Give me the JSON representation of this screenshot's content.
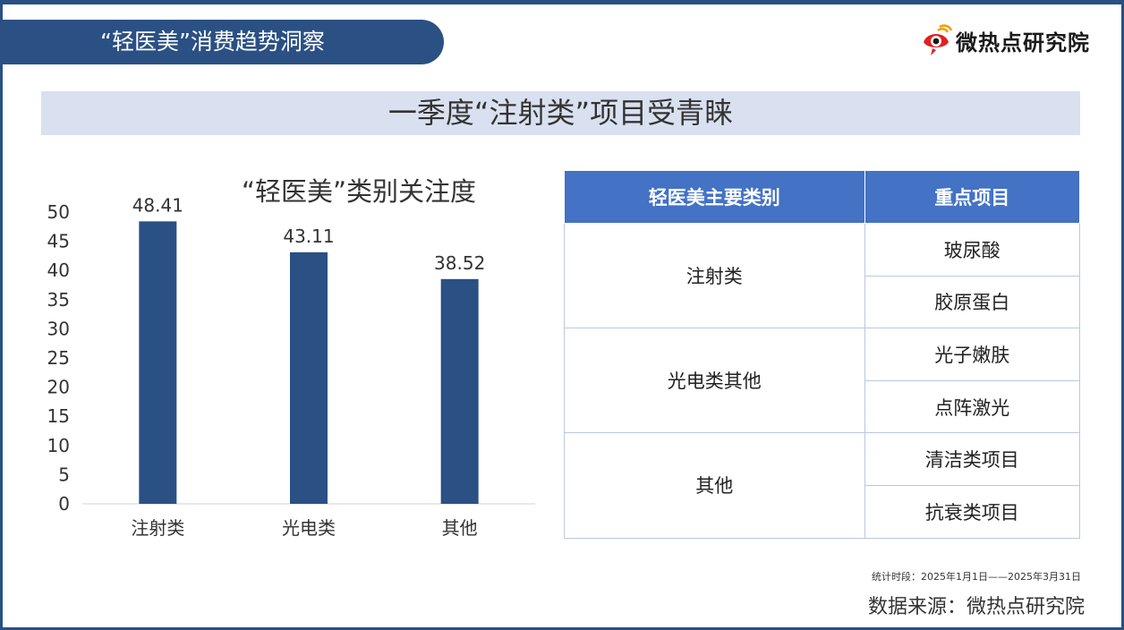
{
  "header": {
    "title": "“轻医美”消费趋势洞察"
  },
  "logo": {
    "text": "微热点研究院",
    "icon": "weibo-eye-logo-icon"
  },
  "banner": {
    "title": "一季度“注射类”项目受青睐"
  },
  "chart_data": {
    "type": "bar",
    "title": "“轻医美”类别关注度",
    "categories": [
      "注射类",
      "光电类",
      "其他"
    ],
    "values": [
      48.41,
      43.11,
      38.52
    ],
    "value_labels": [
      "48.41",
      "43.11",
      "38.52"
    ],
    "ylim": [
      0,
      50
    ],
    "yticks": [
      "0",
      "5",
      "10",
      "15",
      "20",
      "25",
      "30",
      "35",
      "40",
      "45",
      "50"
    ],
    "bar_color": "#2a5084",
    "grid": false
  },
  "table": {
    "headers": [
      "轻医美主要类别",
      "重点项目"
    ],
    "groups": [
      {
        "category": "注射类",
        "items": [
          "玻尿酸",
          "胶原蛋白"
        ]
      },
      {
        "category": "光电类其他",
        "items": [
          "光子嫩肤",
          "点阵激光"
        ]
      },
      {
        "category": "其他",
        "items": [
          "清洁类项目",
          "抗衰类项目"
        ]
      }
    ]
  },
  "footer": {
    "period": "统计时段：2025年1月1日——2025年3月31日",
    "source": "数据来源：微热点研究院"
  },
  "colors": {
    "primary": "#2a5084",
    "header_fill": "#4472c4",
    "banner_fill": "#d9e1f0",
    "logo_red": "#e02020"
  }
}
